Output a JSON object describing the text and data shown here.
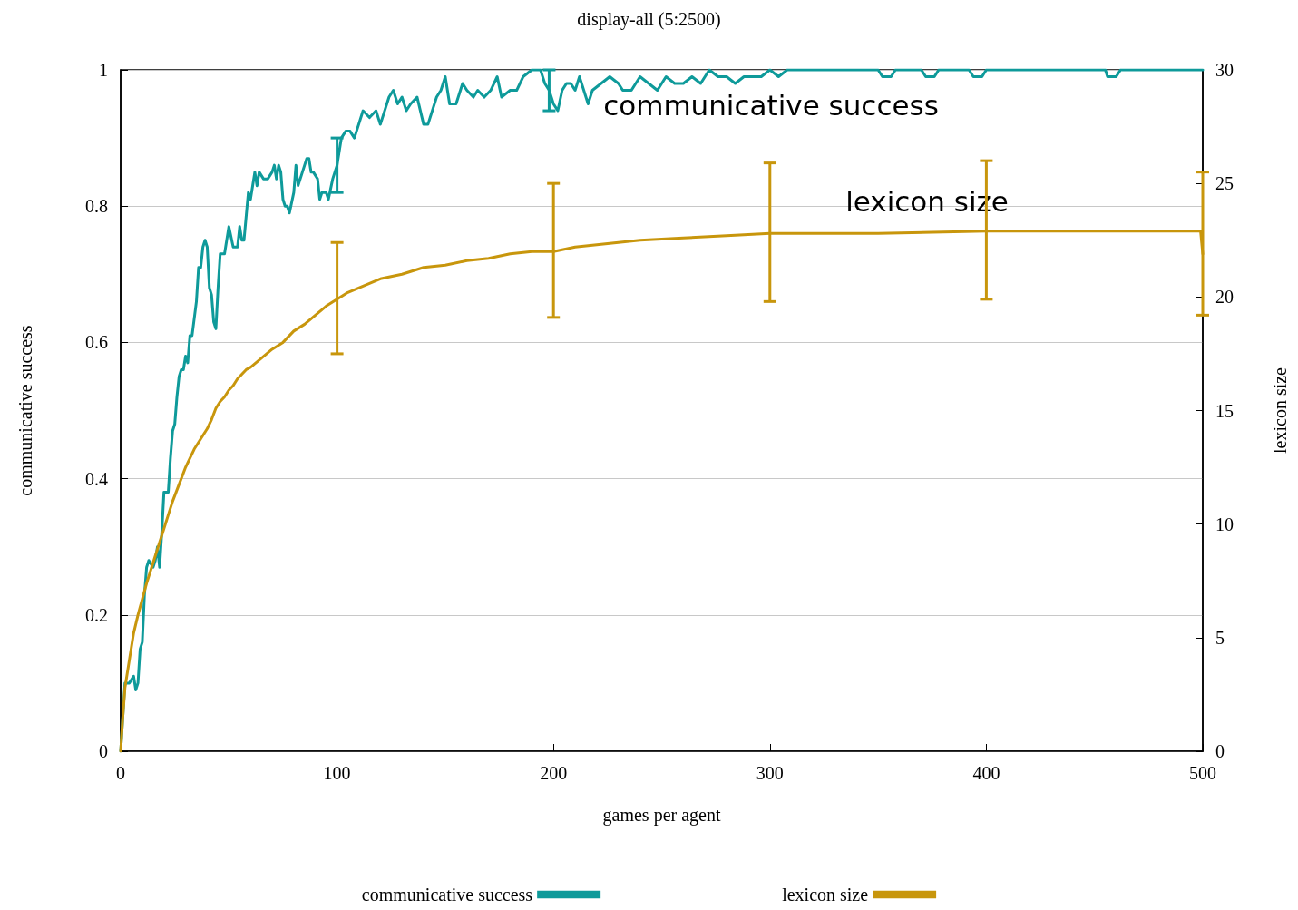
{
  "chart_data": {
    "type": "line",
    "title": "display-all (5:2500)",
    "xlabel": "games per agent",
    "ylabel": "communicative success",
    "y2label": "lexicon size",
    "xlim": [
      0,
      500
    ],
    "xticks": [
      0,
      100,
      200,
      300,
      400,
      500
    ],
    "ylim": [
      0,
      1
    ],
    "yticks": [
      0,
      0.2,
      0.4,
      0.6,
      0.8,
      1
    ],
    "y2lim": [
      0,
      30
    ],
    "y2ticks": [
      0,
      5,
      10,
      15,
      20,
      25,
      30
    ],
    "grid": "y",
    "legend": "bottom",
    "marker": "none",
    "line_style": "solid",
    "annotations": [
      "communicative success",
      "lexicon size"
    ],
    "series": [
      {
        "name": "communicative success",
        "color": "#0e9a9a",
        "x": [
          0,
          2,
          4,
          6,
          7,
          8,
          9,
          10,
          11,
          12,
          13,
          15,
          16,
          17,
          18,
          19,
          20,
          21,
          22,
          23,
          24,
          25,
          26,
          27,
          28,
          29,
          30,
          31,
          32,
          33,
          35,
          36,
          37,
          38,
          39,
          40,
          41,
          42,
          43,
          44,
          45,
          46,
          48,
          50,
          52,
          54,
          55,
          56,
          57,
          59,
          60,
          62,
          63,
          64,
          66,
          68,
          70,
          71,
          72,
          73,
          74,
          75,
          76,
          77,
          78,
          80,
          81,
          82,
          84,
          85,
          86,
          87,
          88,
          89,
          91,
          92,
          93,
          95,
          96,
          98,
          100,
          102,
          104,
          106,
          108,
          110,
          112,
          115,
          118,
          120,
          124,
          126,
          128,
          130,
          132,
          134,
          137,
          140,
          142,
          146,
          148,
          150,
          152,
          155,
          158,
          160,
          163,
          165,
          168,
          171,
          174,
          176,
          180,
          183,
          186,
          190,
          194,
          196,
          198,
          200,
          202,
          204,
          206,
          208,
          210,
          212,
          214,
          216,
          218,
          222,
          226,
          230,
          232,
          236,
          240,
          244,
          248,
          252,
          256,
          260,
          264,
          268,
          272,
          276,
          280,
          284,
          288,
          292,
          296,
          300,
          304,
          308,
          350,
          352,
          356,
          358,
          370,
          372,
          376,
          378,
          392,
          394,
          398,
          400,
          455,
          456,
          460,
          462,
          500
        ],
        "values": [
          0,
          0.1,
          0.1,
          0.11,
          0.09,
          0.1,
          0.15,
          0.16,
          0.23,
          0.27,
          0.28,
          0.27,
          0.28,
          0.3,
          0.27,
          0.32,
          0.38,
          0.38,
          0.38,
          0.43,
          0.47,
          0.48,
          0.52,
          0.55,
          0.56,
          0.56,
          0.58,
          0.57,
          0.61,
          0.61,
          0.66,
          0.71,
          0.71,
          0.74,
          0.75,
          0.74,
          0.68,
          0.67,
          0.63,
          0.62,
          0.68,
          0.73,
          0.73,
          0.77,
          0.74,
          0.74,
          0.77,
          0.75,
          0.75,
          0.82,
          0.81,
          0.85,
          0.83,
          0.85,
          0.84,
          0.84,
          0.85,
          0.86,
          0.84,
          0.86,
          0.85,
          0.81,
          0.8,
          0.8,
          0.79,
          0.82,
          0.86,
          0.83,
          0.85,
          0.86,
          0.87,
          0.87,
          0.85,
          0.85,
          0.84,
          0.81,
          0.82,
          0.82,
          0.81,
          0.84,
          0.86,
          0.9,
          0.91,
          0.91,
          0.9,
          0.92,
          0.94,
          0.93,
          0.94,
          0.92,
          0.96,
          0.97,
          0.95,
          0.96,
          0.94,
          0.95,
          0.96,
          0.92,
          0.92,
          0.96,
          0.97,
          0.99,
          0.95,
          0.95,
          0.98,
          0.97,
          0.96,
          0.97,
          0.96,
          0.97,
          0.99,
          0.96,
          0.97,
          0.97,
          0.99,
          1,
          1,
          0.98,
          0.97,
          0.95,
          0.94,
          0.97,
          0.98,
          0.98,
          0.97,
          0.99,
          0.97,
          0.95,
          0.97,
          0.98,
          0.99,
          0.98,
          0.97,
          0.97,
          0.99,
          0.98,
          0.97,
          0.99,
          0.98,
          0.98,
          0.99,
          0.98,
          1,
          0.99,
          0.99,
          0.98,
          0.99,
          0.99,
          0.99,
          1,
          0.99,
          1,
          1,
          0.99,
          0.99,
          1,
          1,
          0.99,
          0.99,
          1,
          1,
          0.99,
          0.99,
          1,
          1,
          0.99,
          0.99,
          1,
          1
        ],
        "errors": [
          null,
          null,
          null,
          null,
          null,
          null,
          null,
          null,
          null,
          null,
          null,
          null,
          null,
          null,
          null,
          null,
          null,
          null,
          null,
          null,
          null,
          null,
          null,
          null,
          null,
          null,
          null,
          null,
          null,
          null,
          null,
          null,
          null,
          null,
          null,
          null,
          null,
          null,
          null,
          null,
          null,
          null,
          null,
          null,
          null,
          null,
          null,
          null,
          null,
          null,
          null,
          null,
          null,
          null,
          null,
          null,
          null,
          null,
          null,
          null,
          null,
          null,
          null,
          null,
          null,
          null,
          null,
          null,
          null,
          null,
          null,
          null,
          null,
          null,
          null,
          null,
          null,
          null,
          null,
          null,
          [
            0.82,
            0.9
          ],
          null,
          null,
          null,
          null,
          null,
          null,
          null,
          null,
          null,
          null,
          null,
          null,
          null,
          null,
          null,
          null,
          null,
          null,
          null,
          null,
          null,
          null,
          null,
          null,
          null,
          null,
          null,
          null,
          null,
          null,
          null,
          null,
          null,
          null,
          null,
          null,
          null,
          [
            0.94,
            1
          ],
          null,
          null,
          null,
          null,
          null,
          null,
          null,
          null,
          null,
          null,
          null,
          null,
          null,
          null,
          null,
          null,
          null,
          null,
          null,
          null,
          null,
          null,
          null,
          null,
          null,
          null,
          null,
          null,
          null,
          null,
          null,
          null,
          null,
          null,
          null,
          null,
          null,
          null,
          null,
          null,
          null,
          null,
          null,
          null,
          null,
          null,
          null,
          null,
          null,
          null
        ]
      },
      {
        "name": "lexicon size",
        "color": "#c8960c",
        "axis": "y2",
        "x": [
          0,
          1,
          2,
          4,
          6,
          8,
          10,
          12,
          14,
          16,
          18,
          20,
          22,
          24,
          26,
          28,
          30,
          32,
          34,
          36,
          38,
          40,
          42,
          44,
          46,
          48,
          50,
          52,
          54,
          56,
          58,
          60,
          65,
          70,
          75,
          78,
          80,
          85,
          90,
          95,
          100,
          105,
          110,
          115,
          120,
          130,
          140,
          150,
          160,
          170,
          180,
          190,
          200,
          210,
          220,
          240,
          260,
          280,
          300,
          350,
          400,
          450,
          499,
          500
        ],
        "values": [
          0,
          1.5,
          2.8,
          4,
          5.2,
          6,
          6.7,
          7.4,
          8,
          8.6,
          9.2,
          9.8,
          10.4,
          11,
          11.5,
          12,
          12.5,
          12.9,
          13.3,
          13.6,
          13.9,
          14.2,
          14.6,
          15.1,
          15.4,
          15.6,
          15.9,
          16.1,
          16.4,
          16.6,
          16.8,
          16.9,
          17.3,
          17.7,
          18,
          18.3,
          18.5,
          18.8,
          19.2,
          19.6,
          19.9,
          20.2,
          20.4,
          20.6,
          20.8,
          21,
          21.3,
          21.4,
          21.6,
          21.7,
          21.9,
          22,
          22,
          22.2,
          22.3,
          22.5,
          22.6,
          22.7,
          22.8,
          22.8,
          22.9,
          22.9,
          22.9,
          21.9
        ],
        "errors": [
          null,
          null,
          null,
          null,
          null,
          null,
          null,
          null,
          null,
          null,
          null,
          null,
          null,
          null,
          null,
          null,
          null,
          null,
          null,
          null,
          null,
          null,
          null,
          null,
          null,
          null,
          null,
          null,
          null,
          null,
          null,
          null,
          null,
          null,
          null,
          null,
          null,
          null,
          null,
          null,
          [
            17.5,
            22.4
          ],
          null,
          null,
          null,
          null,
          null,
          null,
          null,
          null,
          null,
          null,
          null,
          [
            19.1,
            25
          ],
          null,
          null,
          null,
          null,
          null,
          [
            19.8,
            25.9
          ],
          null,
          [
            19.9,
            26
          ],
          null,
          null,
          [
            19.2,
            25.5
          ]
        ]
      }
    ]
  }
}
